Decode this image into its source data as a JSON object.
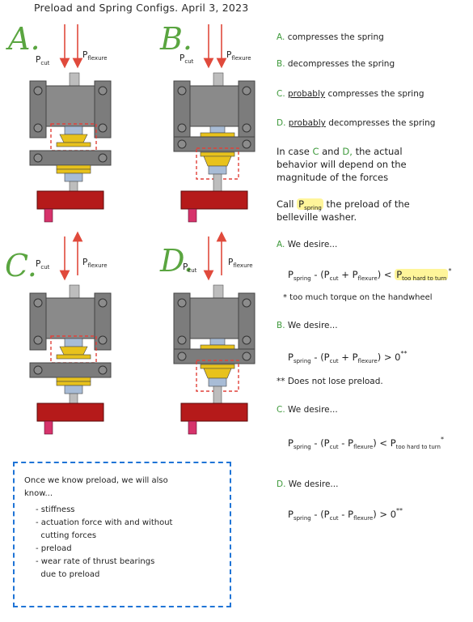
{
  "title": "Preload and Spring Configs.  April 3, 2023",
  "diagrams": [
    {
      "letter": "A.",
      "p1": "P",
      "p1_sub": "cut",
      "p2": "P",
      "p2_sub": "flexure"
    },
    {
      "letter": "B.",
      "p1": "P",
      "p1_sub": "cut",
      "p2": "P",
      "p2_sub": "flexure"
    },
    {
      "letter": "C.",
      "p1": "P",
      "p1_sub": "cut",
      "p2": "P",
      "p2_sub": "flexure"
    },
    {
      "letter": "D.",
      "p1": "P",
      "p1_sub": "cut",
      "p2": "P",
      "p2_sub": "flexure"
    }
  ],
  "notes": {
    "a": {
      "label": "A.",
      "text": "compresses the spring"
    },
    "b": {
      "label": "B.",
      "text": "decompresses the spring"
    },
    "c": {
      "label": "C.",
      "prob": "probably",
      "text": "compresses the spring"
    },
    "d": {
      "label": "D.",
      "prob": "probably",
      "text": "decompresses the spring"
    },
    "case_line1": "In case",
    "case_c": "C",
    "case_and": "and",
    "case_d": "D,",
    "case_line1b": "the actual",
    "case_line2": "behavior will depend on the",
    "case_line3": "magnitude of the forces",
    "call_pre": "Call",
    "call_hl": "P",
    "call_hl_sub": "spring",
    "call_post": "the preload of the",
    "call_line2": "belleville washer."
  },
  "desires": {
    "a_head": "A. We desire...",
    "a_eq": "P",
    "a_eq_sub": "spring",
    "a_eq_mid": " - (P",
    "a_cut": "cut",
    "a_plus": " + P",
    "a_flex": "flexure",
    "a_close": ") < ",
    "a_rhs": "P",
    "a_rhs_sub": "too hard to turn",
    "a_star": "*",
    "a_note": "* too much torque on the handwheel",
    "b_head": "B. We desire...",
    "b_eq_pre": "P",
    "b_eq_sub": "spring",
    "b_eq_mid": " - (P",
    "b_cut": "cut",
    "b_plus": " + P",
    "b_flex": "flexure",
    "b_close": ") > 0",
    "b_star": "**",
    "b_note": "** Does not lose preload.",
    "c_head": "C. We desire...",
    "c_eq_pre": "P",
    "c_eq_sub": "spring",
    "c_eq_mid": " - (P",
    "c_cut": "cut",
    "c_minus": " - P",
    "c_flex": "flexure",
    "c_close": ") < ",
    "c_rhs": "P",
    "c_rhs_sub": "too hard to turn",
    "c_star": "*",
    "d_head": "D. We desire...",
    "d_eq_pre": "P",
    "d_eq_sub": "spring",
    "d_eq_mid": " - (P",
    "d_cut": "cut",
    "d_minus": " - P",
    "d_flex": "flexure",
    "d_close": ") > 0",
    "d_star": "**"
  },
  "box": {
    "line1": "Once we know preload, we will also",
    "line2": "know...",
    "items": [
      "- stiffness",
      "- actuation force with and without",
      "  cutting forces",
      "- preload",
      "- wear rate of thrust bearings",
      "  due to preload"
    ]
  },
  "colors": {
    "green": "#5aa540",
    "arrow": "#e04a3c",
    "gray": "#8a8a8a",
    "dark_gray": "#6f6f6f",
    "gold": "#e8c21c",
    "blue_part": "#a8bcd6",
    "red_block": "#b51a1a",
    "pink": "#d6336b",
    "dash_red": "#e0413a",
    "dash_blue": "#1f74d6"
  }
}
